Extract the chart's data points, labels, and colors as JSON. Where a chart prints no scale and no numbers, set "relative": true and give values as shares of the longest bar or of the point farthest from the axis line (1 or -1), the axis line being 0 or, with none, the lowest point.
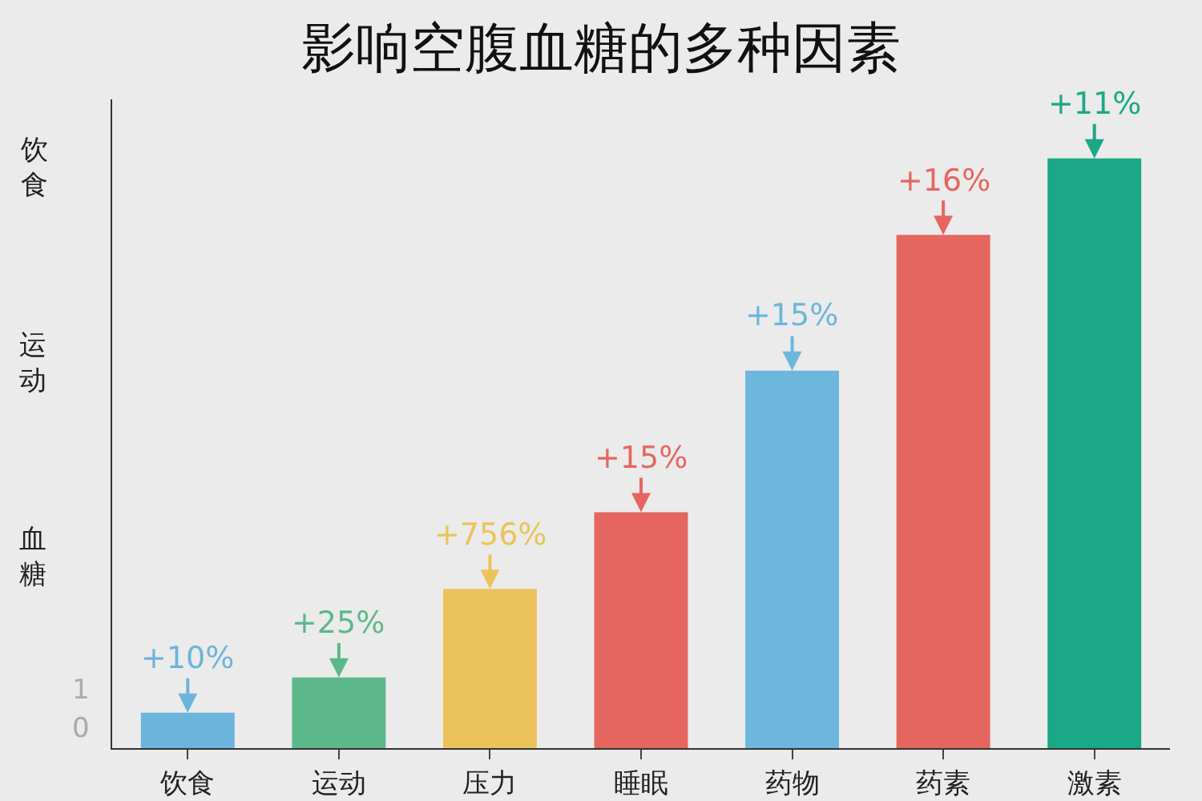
{
  "chart_data": {
    "type": "bar",
    "title": "影响空腹血糖的多种因素",
    "categories": [
      "饮食",
      "运动",
      "压力",
      "睡眠",
      "药物",
      "药素",
      "激素"
    ],
    "values": [
      0.06,
      0.12,
      0.27,
      0.4,
      0.64,
      0.87,
      1
    ],
    "colors": [
      "#6cb4dc",
      "#5cb88a",
      "#ecc35a",
      "#e5665f",
      "#6db6dc",
      "#e5665f",
      "#1aa886"
    ],
    "relative": true,
    "annotations": [
      {
        "text": "+10%",
        "x": "饮食",
        "y": 0.06
      },
      {
        "text": "+25%",
        "x": "运动",
        "y": 0.12
      },
      {
        "text": "+756%",
        "x": "压力",
        "y": 0.27
      },
      {
        "text": "+15%",
        "x": "睡眠",
        "y": 0.4
      },
      {
        "text": "+15%",
        "x": "药物",
        "y": 0.64
      },
      {
        "text": "+16%",
        "x": "药素",
        "y": 0.87
      },
      {
        "text": "+11%",
        "x": "激素",
        "y": 1
      },
      "饮食",
      "运动",
      "血糖",
      "1",
      "0"
    ]
  }
}
